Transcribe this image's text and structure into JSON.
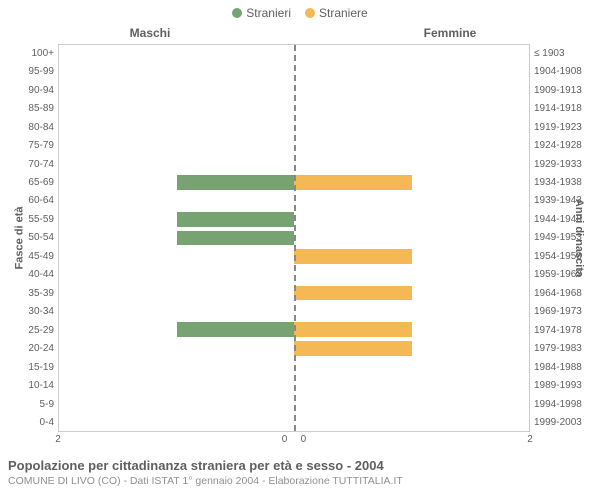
{
  "legend": {
    "male": {
      "label": "Stranieri",
      "color": "#77a372"
    },
    "female": {
      "label": "Straniere",
      "color": "#f4b854"
    }
  },
  "section_titles": {
    "left": "Maschi",
    "right": "Femmine"
  },
  "yaxis_label_left": "Fasce di età",
  "yaxis_label_right": "Anni di nascita",
  "title": "Popolazione per cittadinanza straniera per età e sesso - 2004",
  "subtitle": "COMUNE DI LIVO (CO) - Dati ISTAT 1° gennaio 2004 - Elaborazione TUTTITALIA.IT",
  "xmax": 2,
  "xticks_left": [
    2,
    0
  ],
  "xticks_right": [
    0,
    2
  ],
  "groups": [
    {
      "age": "100+",
      "years": "≤ 1903",
      "m": 0,
      "f": 0
    },
    {
      "age": "95-99",
      "years": "1904-1908",
      "m": 0,
      "f": 0
    },
    {
      "age": "90-94",
      "years": "1909-1913",
      "m": 0,
      "f": 0
    },
    {
      "age": "85-89",
      "years": "1914-1918",
      "m": 0,
      "f": 0
    },
    {
      "age": "80-84",
      "years": "1919-1923",
      "m": 0,
      "f": 0
    },
    {
      "age": "75-79",
      "years": "1924-1928",
      "m": 0,
      "f": 0
    },
    {
      "age": "70-74",
      "years": "1929-1933",
      "m": 0,
      "f": 0
    },
    {
      "age": "65-69",
      "years": "1934-1938",
      "m": 1,
      "f": 1
    },
    {
      "age": "60-64",
      "years": "1939-1943",
      "m": 0,
      "f": 0
    },
    {
      "age": "55-59",
      "years": "1944-1948",
      "m": 1,
      "f": 0
    },
    {
      "age": "50-54",
      "years": "1949-1953",
      "m": 1,
      "f": 0
    },
    {
      "age": "45-49",
      "years": "1954-1958",
      "m": 0,
      "f": 1
    },
    {
      "age": "40-44",
      "years": "1959-1963",
      "m": 0,
      "f": 0
    },
    {
      "age": "35-39",
      "years": "1964-1968",
      "m": 0,
      "f": 1
    },
    {
      "age": "30-34",
      "years": "1969-1973",
      "m": 0,
      "f": 0
    },
    {
      "age": "25-29",
      "years": "1974-1978",
      "m": 1,
      "f": 1
    },
    {
      "age": "20-24",
      "years": "1979-1983",
      "m": 0,
      "f": 1
    },
    {
      "age": "15-19",
      "years": "1984-1988",
      "m": 0,
      "f": 0
    },
    {
      "age": "10-14",
      "years": "1989-1993",
      "m": 0,
      "f": 0
    },
    {
      "age": "5-9",
      "years": "1994-1998",
      "m": 0,
      "f": 0
    },
    {
      "age": "0-4",
      "years": "1999-2003",
      "m": 0,
      "f": 0
    }
  ],
  "colors": {
    "grid": "#cccccc",
    "center": "#888888",
    "background": "#ffffff",
    "text": "#606060"
  }
}
